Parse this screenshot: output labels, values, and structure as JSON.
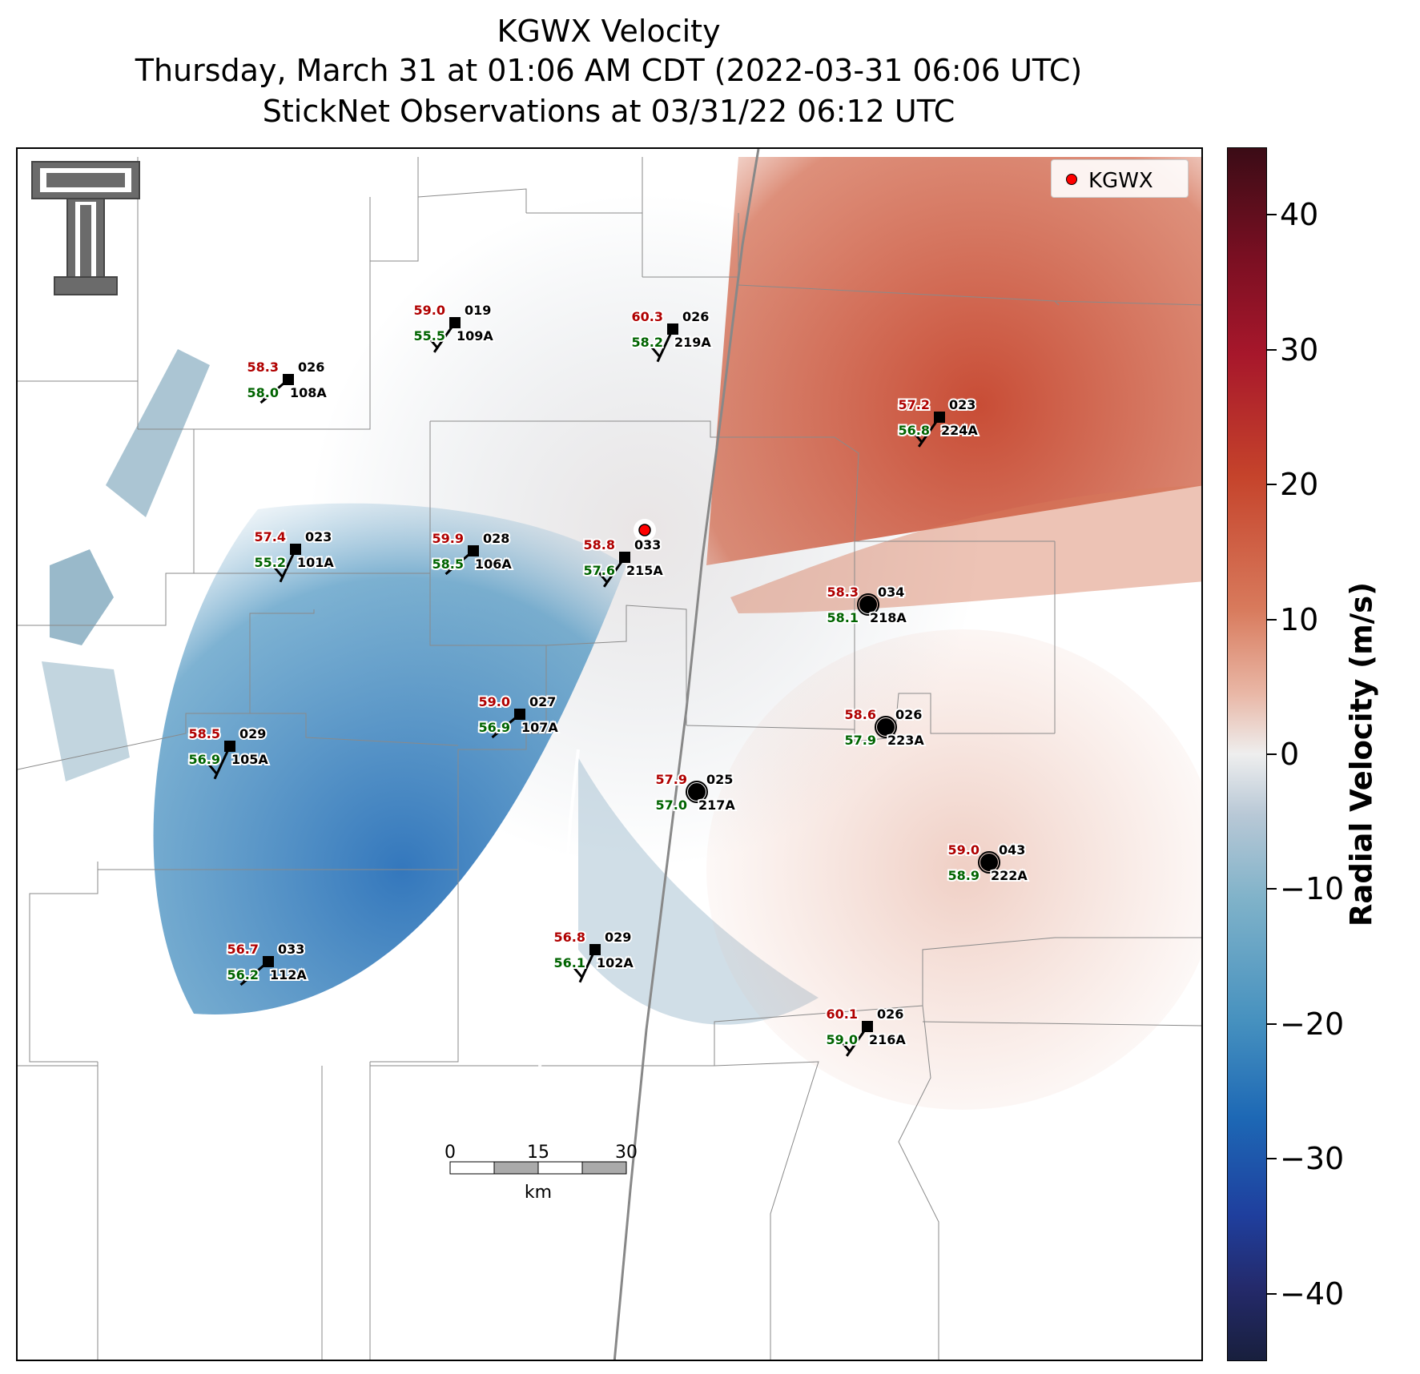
{
  "title": {
    "line1": "KGWX Velocity",
    "line2": "Thursday, March 31 at 01:06 AM CDT (2022-03-31 06:06 UTC)",
    "line3": "StickNet Observations at 03/31/22 06:12 UTC"
  },
  "legend": {
    "label": "KGWX"
  },
  "colorbar": {
    "label": "Radial Velocity (m/s)",
    "min": -45,
    "max": 45,
    "ticks": [
      40,
      30,
      20,
      10,
      0,
      -10,
      -20,
      -30,
      -40
    ],
    "tick_labels": [
      "40",
      "30",
      "20",
      "10",
      "0",
      "−10",
      "−20",
      "−30",
      "−40"
    ]
  },
  "scalebar": {
    "labels": [
      "0",
      "15",
      "30"
    ],
    "unit": "km"
  },
  "colors": {
    "temp": "#b00000",
    "dewpoint": "#006400",
    "radar_dot": "#ff0000",
    "outbound": "#c5432b",
    "inbound": "#1d68b5"
  },
  "logo_icon": "texas-tech-double-t-icon",
  "stations": [
    {
      "id": "109A",
      "temp": "59.0",
      "dew": "55.5",
      "wind": "019"
    },
    {
      "id": "219A",
      "temp": "60.3",
      "dew": "58.2",
      "wind": "026"
    },
    {
      "id": "108A",
      "temp": "58.3",
      "dew": "58.0",
      "wind": "026"
    },
    {
      "id": "224A",
      "temp": "57.2",
      "dew": "56.8",
      "wind": "023"
    },
    {
      "id": "101A",
      "temp": "57.4",
      "dew": "55.2",
      "wind": "023"
    },
    {
      "id": "106A",
      "temp": "59.9",
      "dew": "58.5",
      "wind": "028"
    },
    {
      "id": "215A",
      "temp": "58.8",
      "dew": "57.6",
      "wind": "033"
    },
    {
      "id": "218A",
      "temp": "58.3",
      "dew": "58.1",
      "wind": "034"
    },
    {
      "id": "107A",
      "temp": "59.0",
      "dew": "56.9",
      "wind": "027"
    },
    {
      "id": "223A",
      "temp": "58.6",
      "dew": "57.9",
      "wind": "026"
    },
    {
      "id": "105A",
      "temp": "58.5",
      "dew": "56.9",
      "wind": "029"
    },
    {
      "id": "217A",
      "temp": "57.9",
      "dew": "57.0",
      "wind": "025"
    },
    {
      "id": "222A",
      "temp": "59.0",
      "dew": "58.9",
      "wind": "043"
    },
    {
      "id": "102A",
      "temp": "56.8",
      "dew": "56.1",
      "wind": "029"
    },
    {
      "id": "112A",
      "temp": "56.7",
      "dew": "56.2",
      "wind": "033"
    },
    {
      "id": "216A",
      "temp": "60.1",
      "dew": "59.0",
      "wind": "026"
    }
  ]
}
